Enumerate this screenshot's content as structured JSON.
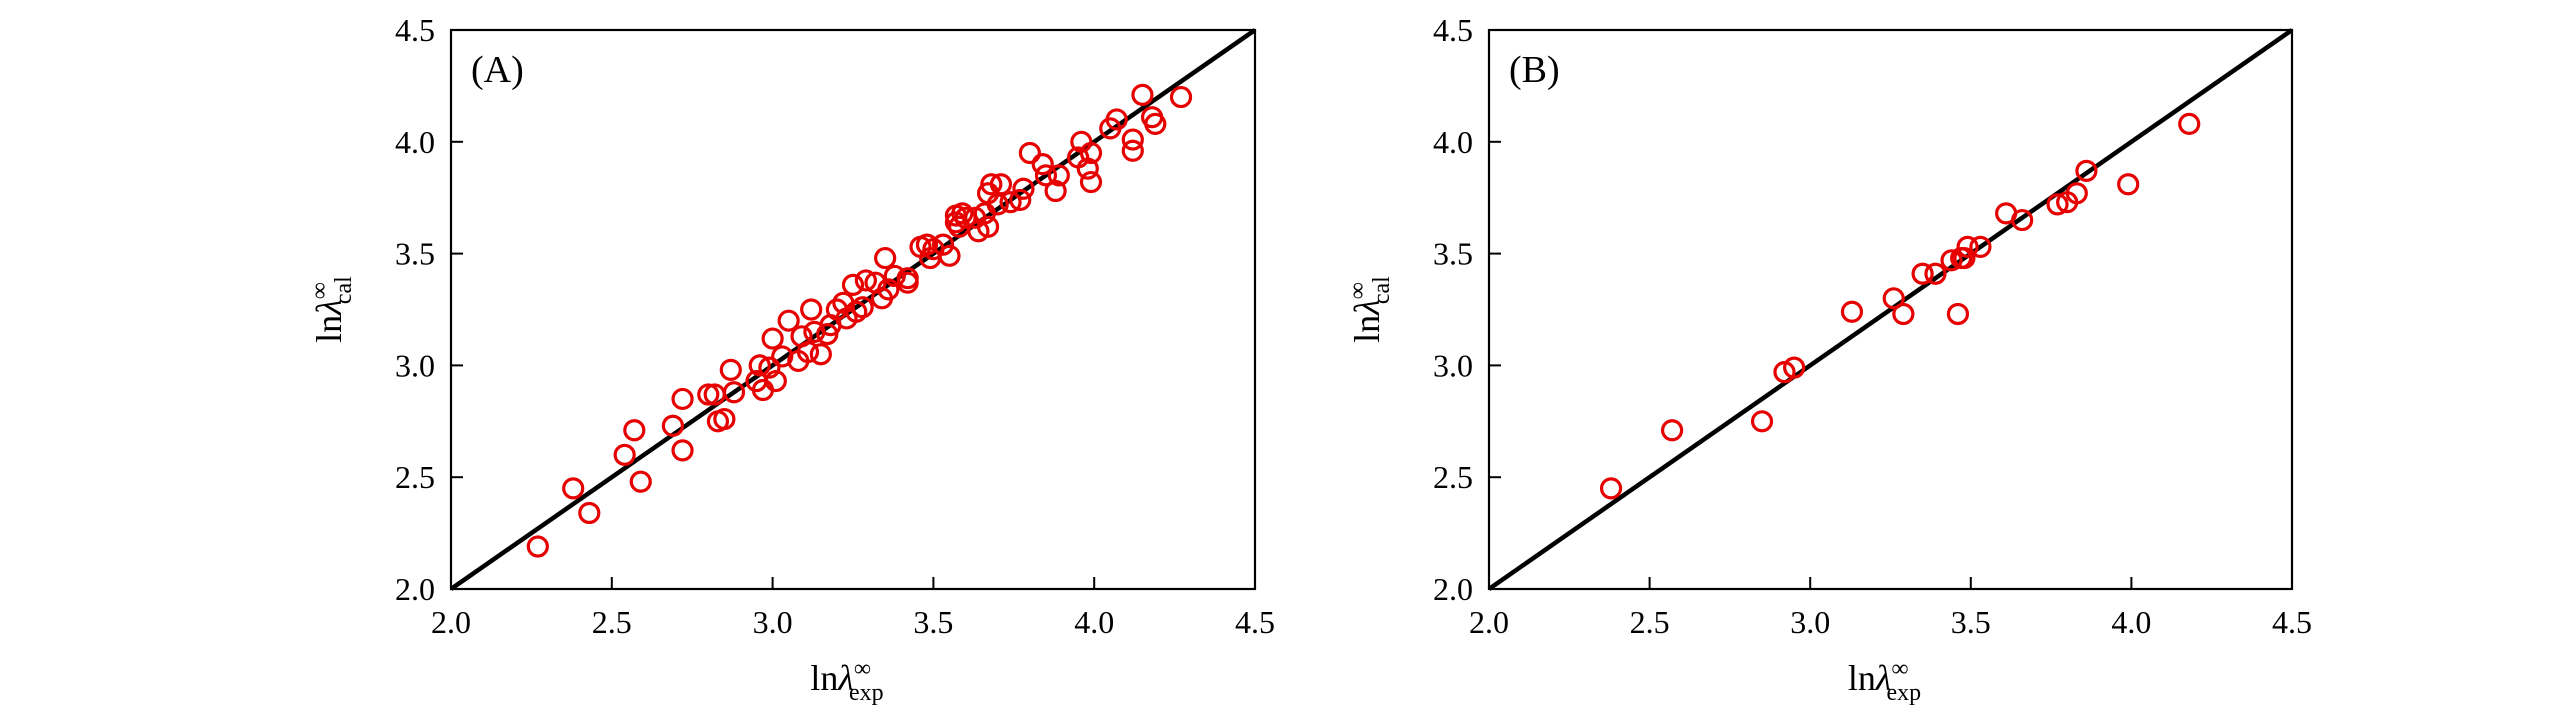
{
  "chart_data": [
    {
      "type": "scatter",
      "panel_label": "(A)",
      "xlabel": {
        "base": "ln",
        "symbol": "λ",
        "sup": "∞",
        "sub": "exp"
      },
      "ylabel": {
        "base": "ln",
        "symbol": "λ",
        "sup": "∞",
        "sub": "cal"
      },
      "xlim": [
        2.0,
        4.5
      ],
      "ylim": [
        2.0,
        4.5
      ],
      "xticks": [
        "2.0",
        "2.5",
        "3.0",
        "3.5",
        "4.0",
        "4.5"
      ],
      "yticks": [
        "2.0",
        "2.5",
        "3.0",
        "3.5",
        "4.0",
        "4.5"
      ],
      "reference_line": {
        "x": [
          2.0,
          4.5
        ],
        "y": [
          2.0,
          4.5
        ],
        "color": "#000000"
      },
      "marker": {
        "shape": "open-circle",
        "color": "#e60000"
      },
      "grid": false,
      "points": [
        [
          2.27,
          2.19
        ],
        [
          2.38,
          2.45
        ],
        [
          2.43,
          2.34
        ],
        [
          2.54,
          2.6
        ],
        [
          2.57,
          2.71
        ],
        [
          2.59,
          2.48
        ],
        [
          2.69,
          2.73
        ],
        [
          2.72,
          2.62
        ],
        [
          2.72,
          2.85
        ],
        [
          2.8,
          2.87
        ],
        [
          2.82,
          2.87
        ],
        [
          2.83,
          2.75
        ],
        [
          2.85,
          2.76
        ],
        [
          2.87,
          2.98
        ],
        [
          2.88,
          2.88
        ],
        [
          2.95,
          2.93
        ],
        [
          2.96,
          3.0
        ],
        [
          2.97,
          2.89
        ],
        [
          2.99,
          2.99
        ],
        [
          3.0,
          3.12
        ],
        [
          3.01,
          2.93
        ],
        [
          3.03,
          3.04
        ],
        [
          3.05,
          3.2
        ],
        [
          3.08,
          3.02
        ],
        [
          3.09,
          3.13
        ],
        [
          3.11,
          3.06
        ],
        [
          3.12,
          3.25
        ],
        [
          3.13,
          3.15
        ],
        [
          3.15,
          3.05
        ],
        [
          3.17,
          3.14
        ],
        [
          3.18,
          3.18
        ],
        [
          3.2,
          3.25
        ],
        [
          3.22,
          3.28
        ],
        [
          3.23,
          3.21
        ],
        [
          3.25,
          3.36
        ],
        [
          3.26,
          3.24
        ],
        [
          3.28,
          3.26
        ],
        [
          3.29,
          3.38
        ],
        [
          3.32,
          3.37
        ],
        [
          3.34,
          3.3
        ],
        [
          3.35,
          3.48
        ],
        [
          3.36,
          3.34
        ],
        [
          3.38,
          3.4
        ],
        [
          3.42,
          3.39
        ],
        [
          3.42,
          3.37
        ],
        [
          3.46,
          3.53
        ],
        [
          3.48,
          3.54
        ],
        [
          3.49,
          3.48
        ],
        [
          3.5,
          3.52
        ],
        [
          3.53,
          3.54
        ],
        [
          3.55,
          3.49
        ],
        [
          3.57,
          3.64
        ],
        [
          3.57,
          3.67
        ],
        [
          3.58,
          3.62
        ],
        [
          3.59,
          3.68
        ],
        [
          3.6,
          3.66
        ],
        [
          3.63,
          3.66
        ],
        [
          3.64,
          3.6
        ],
        [
          3.66,
          3.68
        ],
        [
          3.67,
          3.77
        ],
        [
          3.67,
          3.62
        ],
        [
          3.68,
          3.81
        ],
        [
          3.7,
          3.72
        ],
        [
          3.71,
          3.81
        ],
        [
          3.74,
          3.73
        ],
        [
          3.77,
          3.74
        ],
        [
          3.78,
          3.79
        ],
        [
          3.8,
          3.95
        ],
        [
          3.84,
          3.9
        ],
        [
          3.85,
          3.85
        ],
        [
          3.88,
          3.78
        ],
        [
          3.89,
          3.85
        ],
        [
          3.95,
          3.93
        ],
        [
          3.96,
          4.0
        ],
        [
          3.98,
          3.88
        ],
        [
          3.99,
          3.95
        ],
        [
          3.99,
          3.82
        ],
        [
          4.05,
          4.06
        ],
        [
          4.07,
          4.1
        ],
        [
          4.12,
          4.01
        ],
        [
          4.12,
          3.96
        ],
        [
          4.15,
          4.21
        ],
        [
          4.18,
          4.11
        ],
        [
          4.19,
          4.08
        ],
        [
          4.27,
          4.2
        ]
      ]
    },
    {
      "type": "scatter",
      "panel_label": "(B)",
      "xlabel": {
        "base": "ln",
        "symbol": "λ",
        "sup": "∞",
        "sub": "exp"
      },
      "ylabel": {
        "base": "ln",
        "symbol": "λ",
        "sup": "∞",
        "sub": "cal"
      },
      "xlim": [
        2.0,
        4.5
      ],
      "ylim": [
        2.0,
        4.5
      ],
      "xticks": [
        "2.0",
        "2.5",
        "3.0",
        "3.5",
        "4.0",
        "4.5"
      ],
      "yticks": [
        "2.0",
        "2.5",
        "3.0",
        "3.5",
        "4.0",
        "4.5"
      ],
      "reference_line": {
        "x": [
          2.0,
          4.5
        ],
        "y": [
          2.0,
          4.5
        ],
        "color": "#000000"
      },
      "marker": {
        "shape": "open-circle",
        "color": "#e60000"
      },
      "grid": false,
      "points": [
        [
          2.38,
          2.45
        ],
        [
          2.57,
          2.71
        ],
        [
          2.85,
          2.75
        ],
        [
          2.92,
          2.97
        ],
        [
          2.95,
          2.99
        ],
        [
          3.13,
          3.24
        ],
        [
          3.26,
          3.3
        ],
        [
          3.29,
          3.23
        ],
        [
          3.35,
          3.41
        ],
        [
          3.39,
          3.41
        ],
        [
          3.44,
          3.47
        ],
        [
          3.46,
          3.23
        ],
        [
          3.47,
          3.48
        ],
        [
          3.49,
          3.53
        ],
        [
          3.48,
          3.48
        ],
        [
          3.53,
          3.53
        ],
        [
          3.61,
          3.68
        ],
        [
          3.66,
          3.65
        ],
        [
          3.77,
          3.72
        ],
        [
          3.8,
          3.73
        ],
        [
          3.83,
          3.77
        ],
        [
          3.86,
          3.87
        ],
        [
          3.99,
          3.81
        ],
        [
          4.18,
          4.08
        ]
      ]
    }
  ]
}
